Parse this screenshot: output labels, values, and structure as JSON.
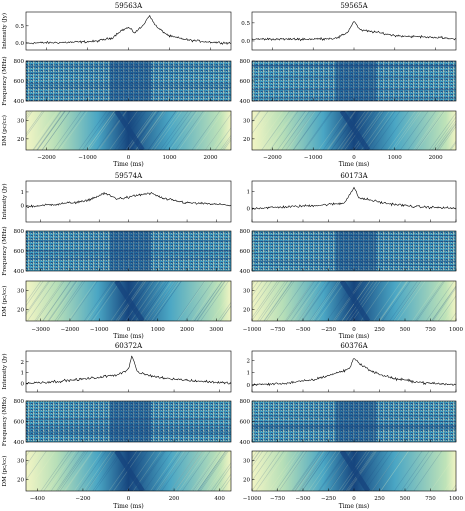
{
  "figure": {
    "intensity_label": "Intensity (Jy)",
    "frequency_label": "Frequency (MHz)",
    "dm_label": "DM (pc/cc)",
    "time_label": "Time (ms)"
  },
  "colors": {
    "line": "#000000",
    "wf_low": "#16457e",
    "wf_mid": "#4aa6c4",
    "wf_high": "#f2f5c4"
  },
  "chart_data": [
    {
      "type": "line",
      "title": "59563A",
      "xlim": [
        -2500,
        2500
      ],
      "xticks": [
        -2000,
        -1000,
        0,
        1000,
        2000
      ],
      "intensity": {
        "yticks": [
          0.0,
          0.5
        ],
        "ylim": [
          -0.2,
          0.9
        ],
        "profile": [
          [
            -2500,
            0.0
          ],
          [
            -1500,
            0.02
          ],
          [
            -800,
            0.05
          ],
          [
            -400,
            0.15
          ],
          [
            -200,
            0.35
          ],
          [
            0,
            0.45
          ],
          [
            150,
            0.3
          ],
          [
            350,
            0.5
          ],
          [
            500,
            0.8
          ],
          [
            700,
            0.45
          ],
          [
            1000,
            0.2
          ],
          [
            1500,
            0.08
          ],
          [
            2000,
            0.03
          ],
          [
            2500,
            0.0
          ]
        ]
      },
      "frequency": {
        "yticks": [
          400,
          600,
          800
        ],
        "ylim": [
          400,
          800
        ]
      },
      "dm": {
        "yticks": [
          20,
          30
        ],
        "ylim": [
          14,
          35
        ]
      }
    },
    {
      "type": "line",
      "title": "59565A",
      "xlim": [
        -2500,
        2500
      ],
      "xticks": [
        -2000,
        -1000,
        0,
        1000,
        2000
      ],
      "intensity": {
        "yticks": [
          0.0,
          0.5
        ],
        "ylim": [
          -0.25,
          0.8
        ],
        "profile": [
          [
            -2500,
            0.05
          ],
          [
            -1000,
            0.05
          ],
          [
            -400,
            0.08
          ],
          [
            -150,
            0.25
          ],
          [
            0,
            0.55
          ],
          [
            150,
            0.3
          ],
          [
            500,
            0.25
          ],
          [
            1000,
            0.15
          ],
          [
            1500,
            0.12
          ],
          [
            2000,
            0.1
          ],
          [
            2500,
            0.05
          ]
        ]
      },
      "frequency": {
        "yticks": [
          400,
          600,
          800
        ],
        "ylim": [
          400,
          800
        ]
      },
      "dm": {
        "yticks": [
          20,
          30
        ],
        "ylim": [
          14,
          35
        ]
      }
    },
    {
      "type": "line",
      "title": "59574A",
      "xlim": [
        -3500,
        3500
      ],
      "xticks": [
        -3000,
        -2000,
        -1000,
        0,
        1000,
        2000,
        3000
      ],
      "intensity": {
        "yticks": [
          0,
          1
        ],
        "ylim": [
          -1.2,
          1.8
        ],
        "profile": [
          [
            -3500,
            -0.1
          ],
          [
            -2500,
            0.1
          ],
          [
            -1500,
            0.3
          ],
          [
            -800,
            0.9
          ],
          [
            -400,
            0.5
          ],
          [
            0,
            0.6
          ],
          [
            400,
            0.8
          ],
          [
            800,
            0.9
          ],
          [
            1200,
            0.5
          ],
          [
            2000,
            0.2
          ],
          [
            3000,
            0.1
          ],
          [
            3500,
            0.0
          ]
        ]
      },
      "frequency": {
        "yticks": [
          400,
          600,
          800
        ],
        "ylim": [
          400,
          800
        ]
      },
      "dm": {
        "yticks": [
          20,
          30
        ],
        "ylim": [
          14,
          35
        ]
      }
    },
    {
      "type": "line",
      "title": "60173A",
      "xlim": [
        -1000,
        1000
      ],
      "xticks": [
        -1000,
        -750,
        -500,
        -250,
        0,
        250,
        500,
        750,
        1000
      ],
      "intensity": {
        "yticks": [
          0,
          1
        ],
        "ylim": [
          -0.8,
          1.6
        ],
        "profile": [
          [
            -1000,
            0.0
          ],
          [
            -600,
            0.1
          ],
          [
            -300,
            0.2
          ],
          [
            -100,
            0.3
          ],
          [
            0,
            1.2
          ],
          [
            50,
            0.6
          ],
          [
            150,
            0.5
          ],
          [
            300,
            0.3
          ],
          [
            600,
            0.1
          ],
          [
            1000,
            0.0
          ]
        ]
      },
      "frequency": {
        "yticks": [
          400,
          600,
          800
        ],
        "ylim": [
          400,
          800
        ]
      },
      "dm": {
        "yticks": [
          20,
          30
        ],
        "ylim": [
          14,
          35
        ]
      }
    },
    {
      "type": "line",
      "title": "60372A",
      "xlim": [
        -450,
        450
      ],
      "xticks": [
        -400,
        -200,
        0,
        200,
        400
      ],
      "intensity": {
        "yticks": [
          0,
          1,
          2
        ],
        "ylim": [
          -0.8,
          3.0
        ],
        "profile": [
          [
            -450,
            0.0
          ],
          [
            -300,
            0.2
          ],
          [
            -150,
            0.5
          ],
          [
            -50,
            0.8
          ],
          [
            0,
            1.3
          ],
          [
            15,
            2.6
          ],
          [
            40,
            1.0
          ],
          [
            120,
            0.6
          ],
          [
            250,
            0.3
          ],
          [
            450,
            0.0
          ]
        ]
      },
      "frequency": {
        "yticks": [
          400,
          600,
          800
        ],
        "ylim": [
          400,
          800
        ]
      },
      "dm": {
        "yticks": [
          20,
          30
        ],
        "ylim": [
          14,
          35
        ]
      }
    },
    {
      "type": "line",
      "title": "60376A",
      "xlim": [
        -1000,
        1000
      ],
      "xticks": [
        -1000,
        -750,
        -500,
        -250,
        0,
        250,
        500,
        750,
        1000
      ],
      "intensity": {
        "yticks": [
          0,
          1,
          2
        ],
        "ylim": [
          -0.6,
          2.8
        ],
        "profile": [
          [
            -1000,
            0.0
          ],
          [
            -700,
            0.1
          ],
          [
            -400,
            0.4
          ],
          [
            -200,
            0.9
          ],
          [
            -50,
            1.3
          ],
          [
            0,
            2.2
          ],
          [
            80,
            1.6
          ],
          [
            200,
            1.0
          ],
          [
            400,
            0.5
          ],
          [
            700,
            0.15
          ],
          [
            1000,
            0.0
          ]
        ]
      },
      "frequency": {
        "yticks": [
          400,
          600,
          800
        ],
        "ylim": [
          400,
          800
        ]
      },
      "dm": {
        "yticks": [
          20,
          30
        ],
        "ylim": [
          14,
          35
        ]
      }
    }
  ]
}
